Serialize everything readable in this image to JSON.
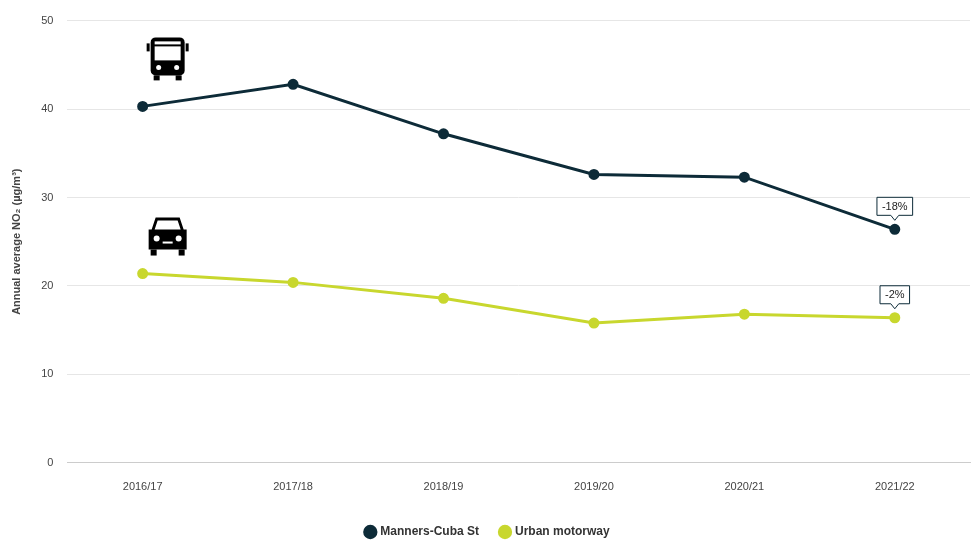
{
  "chart_data": {
    "type": "line",
    "y_label": "Annual average NO₂ (µg/m³)",
    "categories": [
      "2016/17",
      "2017/18",
      "2018/19",
      "2019/20",
      "2020/21",
      "2021/22"
    ],
    "series": [
      {
        "name": "Manners-Cuba St",
        "color": "#0d2b38",
        "marker": "circle",
        "values": [
          40.3,
          42.8,
          37.2,
          32.6,
          32.3,
          26.4
        ]
      },
      {
        "name": "Urban motorway",
        "color": "#c8d72e",
        "marker": "circle",
        "values": [
          21.4,
          20.4,
          18.6,
          15.8,
          16.8,
          16.4
        ]
      }
    ],
    "annotations": [
      {
        "text": "-18%",
        "series": "Manners-Cuba St",
        "category": "2021/22"
      },
      {
        "text": "-2%",
        "series": "Urban motorway",
        "category": "2021/22"
      }
    ],
    "ylim": [
      0,
      50
    ],
    "yticks": [
      0,
      10,
      20,
      30,
      40,
      50
    ],
    "grid": true,
    "legend": "bottom"
  }
}
